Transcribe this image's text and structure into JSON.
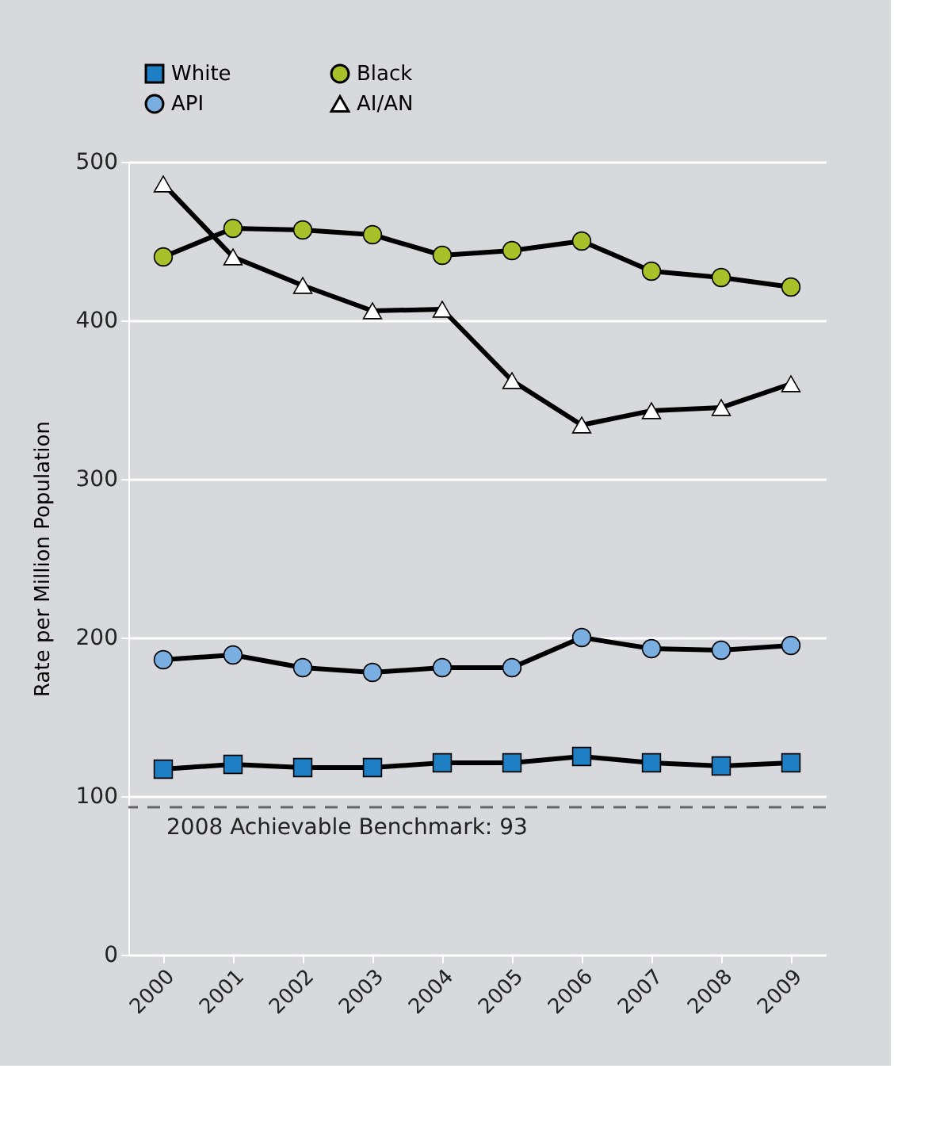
{
  "chart_data": {
    "type": "line",
    "ylabel": "Rate per Million Population",
    "categories": [
      "2000",
      "2001",
      "2002",
      "2003",
      "2004",
      "2005",
      "2006",
      "2007",
      "2008",
      "2009"
    ],
    "series": [
      {
        "name": "White",
        "color": "#1f7fc4",
        "marker": "square",
        "values": [
          117,
          120,
          118,
          118,
          121,
          121,
          125,
          121,
          119,
          121
        ]
      },
      {
        "name": "Black",
        "color": "#a8c02a",
        "marker": "circle",
        "values": [
          440,
          458,
          457,
          454,
          441,
          444,
          450,
          431,
          427,
          421
        ]
      },
      {
        "name": "API",
        "color": "#7aaee0",
        "marker": "circle",
        "values": [
          186,
          189,
          181,
          178,
          181,
          181,
          200,
          193,
          192,
          195
        ]
      },
      {
        "name": "AI/AN",
        "color": "#ffffff",
        "marker": "triangle",
        "values": [
          486,
          440,
          422,
          406,
          407,
          362,
          334,
          343,
          345,
          360
        ]
      }
    ],
    "ylim": [
      0,
      500
    ],
    "yticks": [
      0,
      100,
      200,
      300,
      400,
      500
    ],
    "grid": "y",
    "legend": "top",
    "line_style": "solid",
    "ref_lines": [
      {
        "axis": "y",
        "value": 93,
        "label": "2008 Achievable Benchmark: 93",
        "color": "#666666",
        "line_style": "dashed"
      }
    ]
  }
}
